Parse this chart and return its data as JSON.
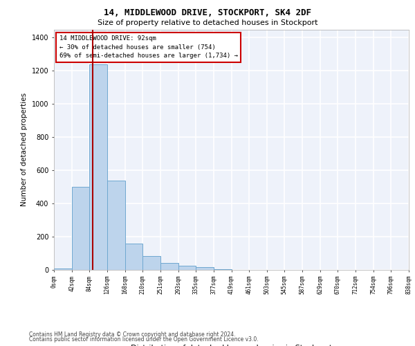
{
  "title1": "14, MIDDLEWOOD DRIVE, STOCKPORT, SK4 2DF",
  "title2": "Size of property relative to detached houses in Stockport",
  "xlabel": "Distribution of detached houses by size in Stockport",
  "ylabel": "Number of detached properties",
  "bar_values": [
    10,
    500,
    1240,
    540,
    160,
    85,
    40,
    25,
    15,
    5,
    0,
    0,
    0,
    0,
    0,
    0,
    0,
    0,
    0,
    0
  ],
  "bar_labels": [
    "0sqm",
    "42sqm",
    "84sqm",
    "126sqm",
    "168sqm",
    "210sqm",
    "251sqm",
    "293sqm",
    "335sqm",
    "377sqm",
    "419sqm",
    "461sqm",
    "503sqm",
    "545sqm",
    "587sqm",
    "629sqm",
    "670sqm",
    "712sqm",
    "754sqm",
    "796sqm",
    "838sqm"
  ],
  "bar_color": "#BDD4EC",
  "bar_edge_color": "#6FA8D0",
  "property_label": "14 MIDDLEWOOD DRIVE: 92sqm",
  "annotation_line1": "← 30% of detached houses are smaller (754)",
  "annotation_line2": "69% of semi-detached houses are larger (1,734) →",
  "vline_color": "#AA0000",
  "annotation_box_color": "#CC0000",
  "ylim": [
    0,
    1450
  ],
  "yticks": [
    0,
    200,
    400,
    600,
    800,
    1000,
    1200,
    1400
  ],
  "bg_color": "#EEF2FA",
  "grid_color": "#FFFFFF",
  "footer1": "Contains HM Land Registry data © Crown copyright and database right 2024.",
  "footer2": "Contains public sector information licensed under the Open Government Licence v3.0."
}
